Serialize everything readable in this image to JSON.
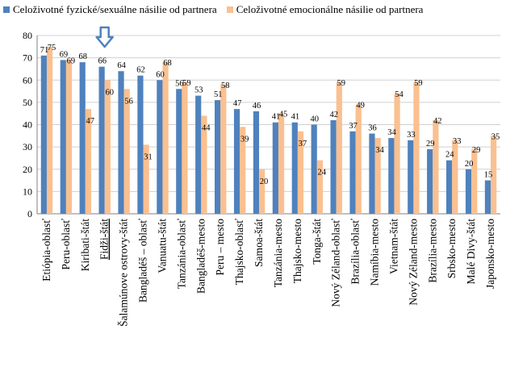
{
  "chart_data": {
    "type": "bar",
    "categories": [
      "Etiópia-oblasť",
      "Peru-oblasť",
      "Kiribati-štát",
      "Fidži-štát",
      "Šalamúnove ostrovy-štát",
      "Bangladéš – oblasť",
      "Vanuatu-štát",
      "Tanzánia-oblasť",
      "Bangladéš-mesto",
      "Peru – mesto",
      "Thajsko-oblasť",
      "Samoa-štát",
      "Tanzánia-mesto",
      "Thajsko-mesto",
      "Tonga-štát",
      "Nový Zéland-oblasť",
      "Brazília-oblasť",
      "Namíbia-mesto",
      "Vietnam-štát",
      "Nový Zéland-mesto",
      "Brazília-mesto",
      "Srbsko-mesto",
      "Malé Divy-štát",
      "Japonsko-mesto"
    ],
    "series": [
      {
        "name": "Celoživotné fyzické/sexuálne násilie od partnera",
        "color": "#4f81bd",
        "values": [
          71,
          69,
          68,
          66,
          64,
          62,
          60,
          56,
          53,
          51,
          47,
          46,
          41,
          41,
          40,
          42,
          37,
          36,
          34,
          33,
          29,
          24,
          20,
          15
        ]
      },
      {
        "name": "Celoživotné emocionálne násilie od partnera",
        "color": "#fac090",
        "values": [
          75,
          69,
          47,
          60,
          56,
          31,
          68,
          59,
          44,
          58,
          39,
          20,
          45,
          37,
          24,
          59,
          49,
          34,
          54,
          59,
          42,
          33,
          29,
          35
        ]
      }
    ],
    "series_labels": [
      [
        "71",
        "69",
        "68",
        "66",
        "64",
        "62",
        "60",
        "56",
        "53",
        "51",
        "47",
        "46",
        "41",
        "41",
        "40",
        "42",
        "37",
        "36",
        "34",
        "33",
        "29",
        "24",
        "20",
        "15"
      ],
      [
        "75",
        "69",
        "47",
        "60",
        "56",
        "31",
        "68",
        "59",
        "44",
        "58",
        "39",
        "20",
        "45",
        "37",
        "24",
        "59",
        "49",
        "34",
        "54",
        "59",
        "42",
        "33",
        "29",
        "35"
      ]
    ],
    "ylim": [
      0,
      80
    ],
    "yticks": [
      "0",
      "10",
      "20",
      "30",
      "40",
      "50",
      "60",
      "70",
      "80"
    ],
    "highlight_category": "Fidži-štát",
    "highlight_arrow_color": "#4f81bd",
    "grid": true,
    "legend": "top-left"
  }
}
